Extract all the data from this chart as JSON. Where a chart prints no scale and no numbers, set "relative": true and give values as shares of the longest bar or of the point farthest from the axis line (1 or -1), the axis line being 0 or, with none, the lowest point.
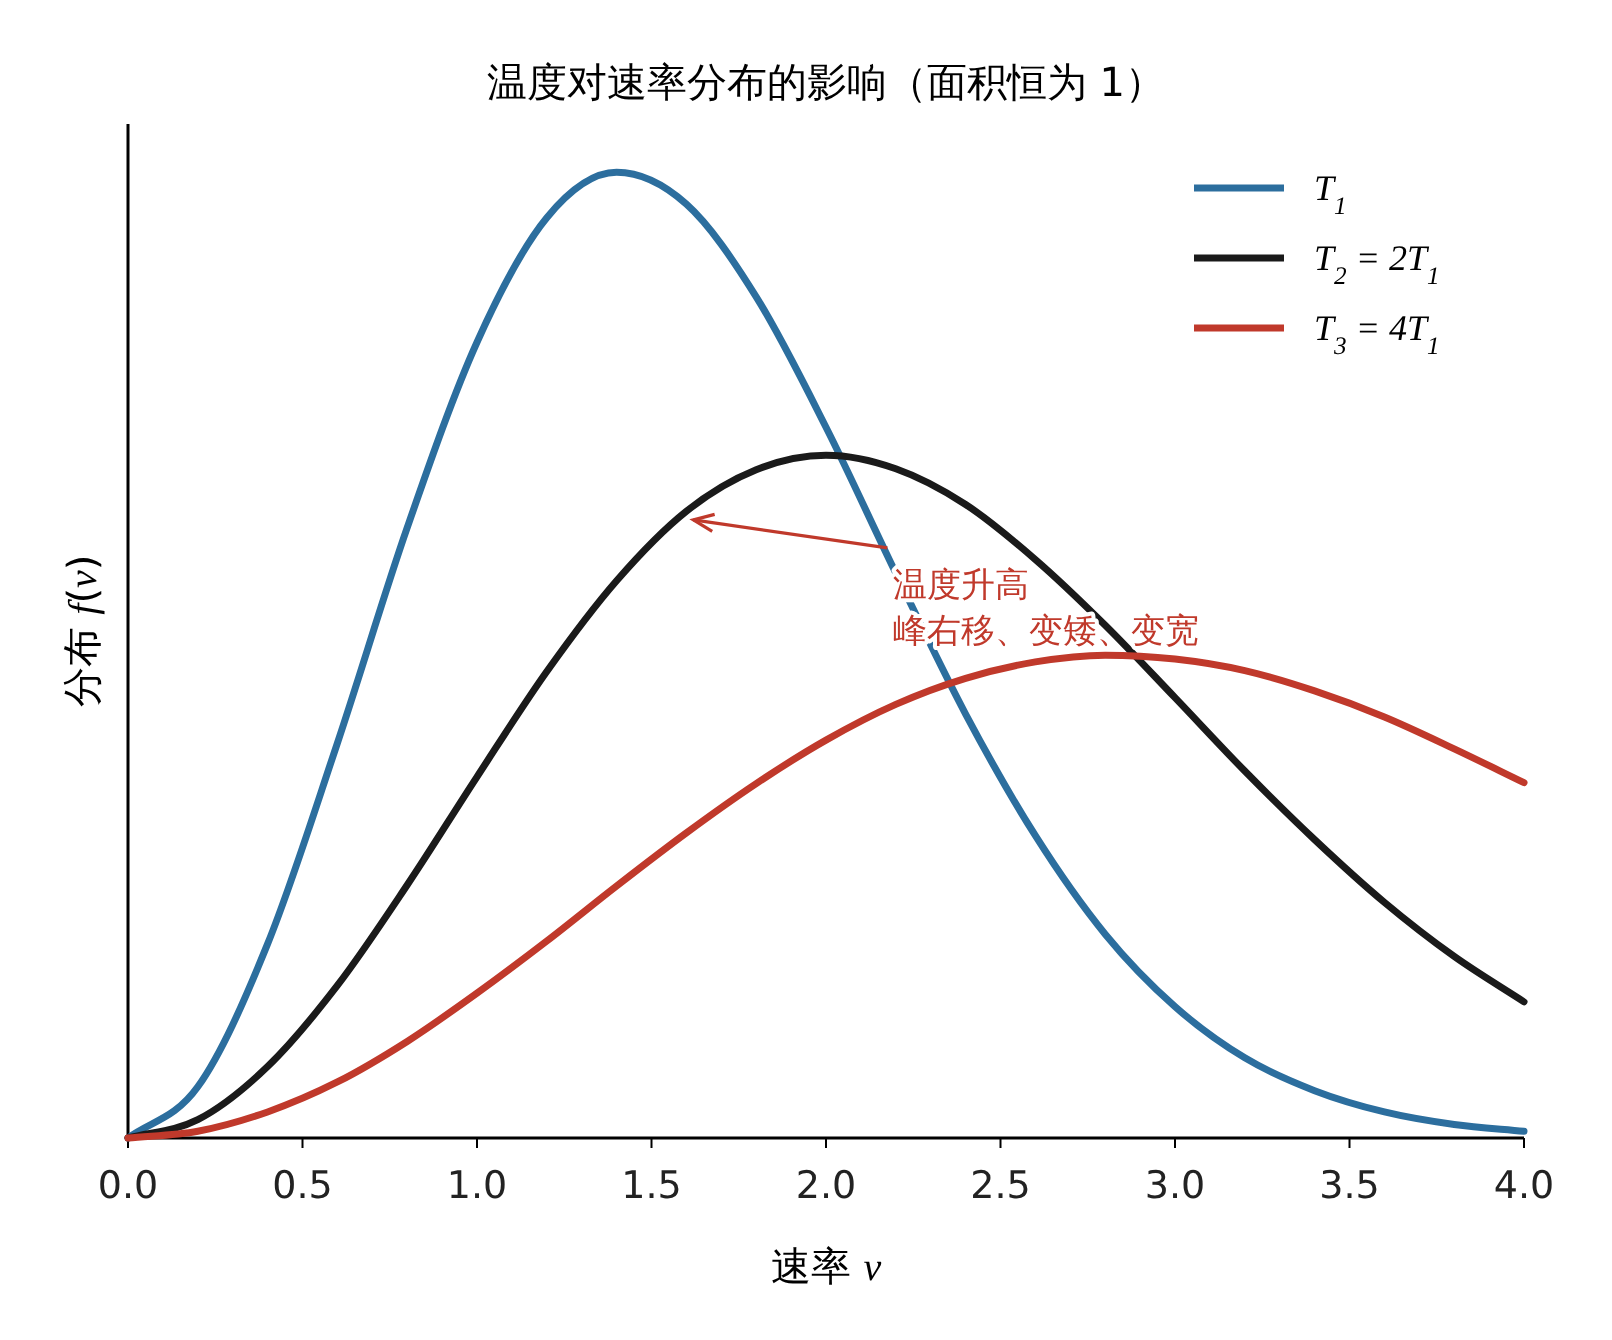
{
  "chart_data": {
    "type": "line",
    "title": "温度对速率分布的影响（面积恒为 1）",
    "xlabel": "速率 *v*",
    "ylabel": "分布 *f*(*v*)",
    "relative": true,
    "tick_labels": "x",
    "legend": "top right",
    "grid": false,
    "x": [
      0,
      0.2,
      0.4,
      0.6,
      0.8,
      1.0,
      1.2,
      1.4,
      1.6,
      1.8,
      2.0,
      2.2,
      2.4,
      2.6,
      2.8,
      3.0,
      3.2,
      3.4,
      3.6,
      3.8,
      4.0
    ],
    "xlim": [
      0,
      4
    ],
    "xticks": [
      {
        "value": 0,
        "label": "0.0"
      },
      {
        "value": 0.5,
        "label": "0.5"
      },
      {
        "value": 1,
        "label": "1.0"
      },
      {
        "value": 1.5,
        "label": "1.5"
      },
      {
        "value": 2,
        "label": "2.0"
      },
      {
        "value": 2.5,
        "label": "2.5"
      },
      {
        "value": 3,
        "label": "3.0"
      },
      {
        "value": 3.5,
        "label": "3.5"
      },
      {
        "value": 4,
        "label": "4.0"
      }
    ],
    "series": [
      {
        "name": "T$_{1}$",
        "color": "#2c6e9e",
        "values": [
          0,
          0.053,
          0.201,
          0.409,
          0.632,
          0.824,
          0.953,
          1.0,
          0.967,
          0.871,
          0.736,
          0.585,
          0.439,
          0.313,
          0.211,
          0.136,
          0.083,
          0.049,
          0.027,
          0.014,
          0.007
        ]
      },
      {
        "name": "T$_{2}$ = 2T$_{1}$",
        "color": "#1a1a1a",
        "values": [
          0,
          0.019,
          0.074,
          0.158,
          0.262,
          0.374,
          0.483,
          0.577,
          0.649,
          0.692,
          0.707,
          0.693,
          0.656,
          0.599,
          0.531,
          0.456,
          0.38,
          0.309,
          0.244,
          0.188,
          0.141
        ]
      },
      {
        "name": "T$_{3}$ = 4T$_{1}$",
        "color": "#c0392b",
        "values": [
          0,
          0.007,
          0.027,
          0.058,
          0.1,
          0.15,
          0.204,
          0.261,
          0.316,
          0.367,
          0.412,
          0.449,
          0.476,
          0.493,
          0.5,
          0.496,
          0.484,
          0.463,
          0.436,
          0.403,
          0.368
        ]
      }
    ],
    "annotations": [
      {
        "text": "温度升高",
        "x": 1.62,
        "y": 0.64
      },
      "峰右移、变矮、变宽"
    ]
  }
}
